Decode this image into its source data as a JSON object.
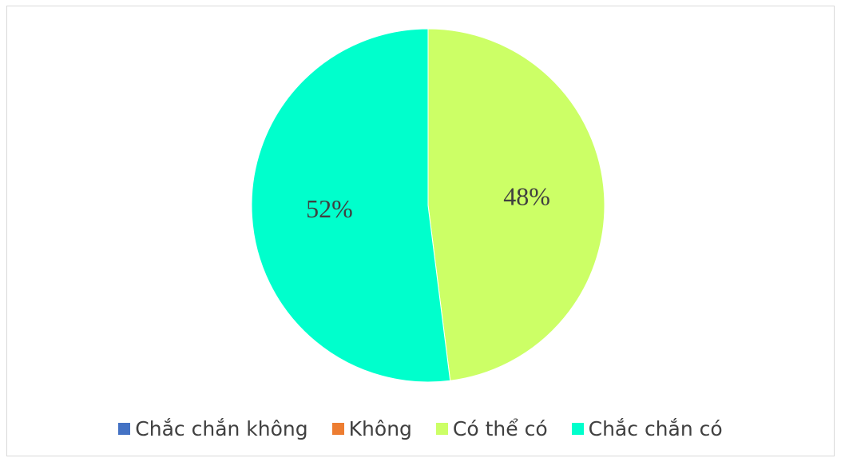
{
  "chart_data": {
    "type": "pie",
    "categories": [
      "Chắc chắn không",
      "Không",
      "Có thể có",
      "Chắc chắn có"
    ],
    "values": [
      0,
      0,
      48,
      52
    ],
    "data_labels": [
      "",
      "",
      "48%",
      "52%"
    ],
    "colors": [
      "#4472C4",
      "#ED7D31",
      "#CCFF66",
      "#00FFCC"
    ],
    "legend_position": "bottom",
    "start_angle": "top, clockwise"
  },
  "legend": {
    "items": [
      {
        "label": "Chắc chắn không",
        "color": "#4472C4"
      },
      {
        "label": "Không",
        "color": "#ED7D31"
      },
      {
        "label": "Có thể có",
        "color": "#CCFF66"
      },
      {
        "label": "Chắc chắn có",
        "color": "#00FFCC"
      }
    ]
  }
}
